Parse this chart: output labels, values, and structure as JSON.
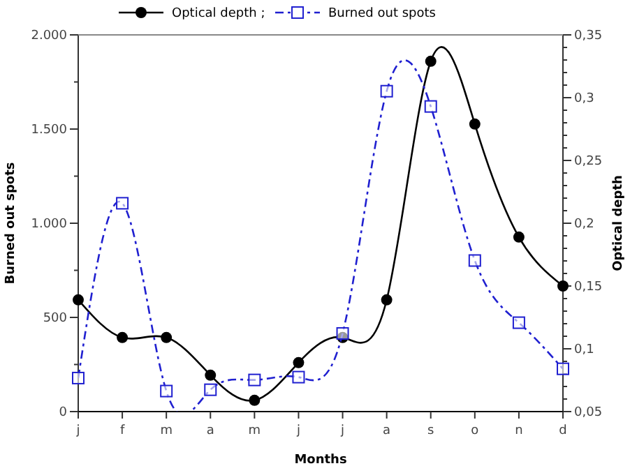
{
  "chart_data": {
    "type": "line",
    "xlabel": "Months",
    "ylabel": "Burned out spots",
    "y2label": "Optical depth",
    "categories": [
      "j",
      "f",
      "m",
      "a",
      "m",
      "j",
      "j",
      "a",
      "s",
      "o",
      "n",
      "d"
    ],
    "series": [
      {
        "name": "Optical depth ;",
        "color": "#000000",
        "axis": "y2",
        "marker": "circle",
        "line_style": "solid",
        "values": [
          0.139,
          0.109,
          0.109,
          0.079,
          0.059,
          0.089,
          0.109,
          0.139,
          0.329,
          0.279,
          0.189,
          0.15
        ]
      },
      {
        "name": "Burned out spots",
        "color": "#2020d0",
        "marker": "square",
        "line_style": "dashed",
        "values": [
          178,
          1106,
          109,
          116,
          168,
          183,
          415,
          1701,
          1620,
          802,
          472,
          227
        ]
      }
    ],
    "ylim": [
      0,
      2000
    ],
    "yticks": [
      {
        "value": 0,
        "label": "0"
      },
      {
        "value": 250,
        "label": null
      },
      {
        "value": 500,
        "label": "500"
      },
      {
        "value": 750,
        "label": null
      },
      {
        "value": 1000,
        "label": "1.000"
      },
      {
        "value": 1250,
        "label": null
      },
      {
        "value": 1500,
        "label": "1.500"
      },
      {
        "value": 1750,
        "label": null
      },
      {
        "value": 2000,
        "label": "2.000"
      }
    ],
    "y2lim": [
      0.05,
      0.35
    ],
    "y2ticks": [
      {
        "value": 0.05,
        "label": "0,05"
      },
      {
        "value": 0.06,
        "label": null
      },
      {
        "value": 0.07,
        "label": null
      },
      {
        "value": 0.08,
        "label": null
      },
      {
        "value": 0.09,
        "label": null
      },
      {
        "value": 0.1,
        "label": "0,1"
      },
      {
        "value": 0.11,
        "label": null
      },
      {
        "value": 0.12,
        "label": null
      },
      {
        "value": 0.13,
        "label": null
      },
      {
        "value": 0.14,
        "label": null
      },
      {
        "value": 0.15,
        "label": "0,15"
      },
      {
        "value": 0.16,
        "label": null
      },
      {
        "value": 0.17,
        "label": null
      },
      {
        "value": 0.18,
        "label": null
      },
      {
        "value": 0.19,
        "label": null
      },
      {
        "value": 0.2,
        "label": "0,2"
      },
      {
        "value": 0.21,
        "label": null
      },
      {
        "value": 0.22,
        "label": null
      },
      {
        "value": 0.23,
        "label": null
      },
      {
        "value": 0.24,
        "label": null
      },
      {
        "value": 0.25,
        "label": "0,25"
      },
      {
        "value": 0.26,
        "label": null
      },
      {
        "value": 0.27,
        "label": null
      },
      {
        "value": 0.28,
        "label": null
      },
      {
        "value": 0.29,
        "label": null
      },
      {
        "value": 0.3,
        "label": "0,3"
      },
      {
        "value": 0.31,
        "label": null
      },
      {
        "value": 0.32,
        "label": null
      },
      {
        "value": 0.33,
        "label": null
      },
      {
        "value": 0.34,
        "label": null
      },
      {
        "value": 0.35,
        "label": "0,35"
      }
    ],
    "grid": false,
    "legend": "top"
  }
}
